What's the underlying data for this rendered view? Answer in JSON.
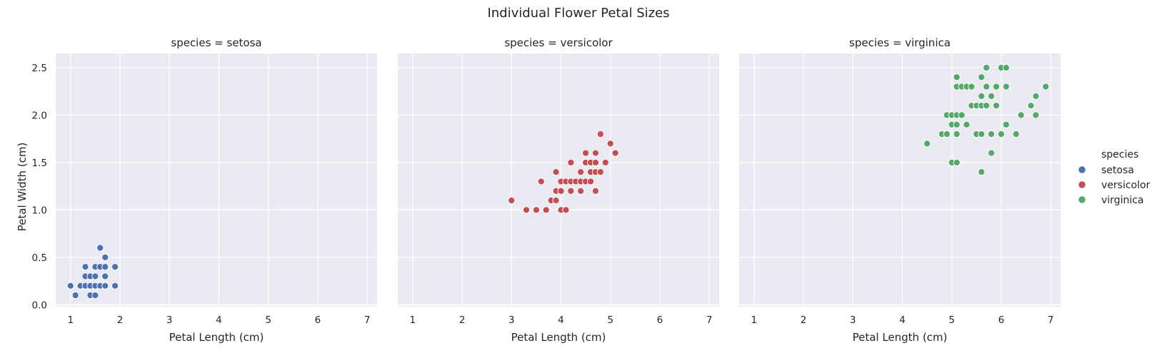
{
  "chart_data": {
    "type": "scatter",
    "title": "Individual Flower Petal Sizes",
    "xlabel": "Petal Length (cm)",
    "ylabel": "Petal Width (cm)",
    "xlim": [
      0.7,
      7.2
    ],
    "ylim": [
      -0.02,
      2.65
    ],
    "xticks": [
      "1",
      "2",
      "3",
      "4",
      "5",
      "6",
      "7"
    ],
    "yticks": [
      "0.0",
      "0.5",
      "1.0",
      "1.5",
      "2.0",
      "2.5"
    ],
    "grid": true,
    "legend": {
      "title": "species",
      "placement": "right",
      "entries": [
        "setosa",
        "versicolor",
        "virginica"
      ]
    },
    "facets": [
      {
        "title": "species = setosa",
        "name": "setosa",
        "color": "#4c72b0",
        "points": [
          [
            1.0,
            0.2
          ],
          [
            1.1,
            0.1
          ],
          [
            1.2,
            0.2
          ],
          [
            1.3,
            0.2
          ],
          [
            1.3,
            0.3
          ],
          [
            1.3,
            0.4
          ],
          [
            1.4,
            0.2
          ],
          [
            1.4,
            0.3
          ],
          [
            1.4,
            0.1
          ],
          [
            1.5,
            0.2
          ],
          [
            1.5,
            0.4
          ],
          [
            1.5,
            0.1
          ],
          [
            1.5,
            0.3
          ],
          [
            1.6,
            0.2
          ],
          [
            1.6,
            0.4
          ],
          [
            1.6,
            0.6
          ],
          [
            1.7,
            0.2
          ],
          [
            1.7,
            0.3
          ],
          [
            1.7,
            0.4
          ],
          [
            1.7,
            0.5
          ],
          [
            1.9,
            0.2
          ],
          [
            1.9,
            0.4
          ]
        ]
      },
      {
        "title": "species = versicolor",
        "name": "versicolor",
        "color": "#c44e52",
        "points": [
          [
            3.0,
            1.1
          ],
          [
            3.3,
            1.0
          ],
          [
            3.5,
            1.0
          ],
          [
            3.6,
            1.3
          ],
          [
            3.7,
            1.0
          ],
          [
            3.8,
            1.1
          ],
          [
            3.9,
            1.1
          ],
          [
            3.9,
            1.2
          ],
          [
            3.9,
            1.4
          ],
          [
            4.0,
            1.0
          ],
          [
            4.0,
            1.2
          ],
          [
            4.0,
            1.3
          ],
          [
            4.1,
            1.0
          ],
          [
            4.1,
            1.3
          ],
          [
            4.2,
            1.2
          ],
          [
            4.2,
            1.3
          ],
          [
            4.2,
            1.5
          ],
          [
            4.3,
            1.3
          ],
          [
            4.4,
            1.2
          ],
          [
            4.4,
            1.3
          ],
          [
            4.4,
            1.4
          ],
          [
            4.5,
            1.3
          ],
          [
            4.5,
            1.5
          ],
          [
            4.5,
            1.6
          ],
          [
            4.6,
            1.3
          ],
          [
            4.6,
            1.4
          ],
          [
            4.6,
            1.5
          ],
          [
            4.7,
            1.2
          ],
          [
            4.7,
            1.4
          ],
          [
            4.7,
            1.5
          ],
          [
            4.7,
            1.6
          ],
          [
            4.8,
            1.4
          ],
          [
            4.8,
            1.8
          ],
          [
            4.9,
            1.5
          ],
          [
            5.0,
            1.7
          ],
          [
            5.1,
            1.6
          ]
        ]
      },
      {
        "title": "species = virginica",
        "name": "virginica",
        "color": "#55a868",
        "points": [
          [
            4.5,
            1.7
          ],
          [
            4.8,
            1.8
          ],
          [
            4.9,
            1.8
          ],
          [
            4.9,
            2.0
          ],
          [
            5.0,
            1.5
          ],
          [
            5.0,
            1.9
          ],
          [
            5.0,
            2.0
          ],
          [
            5.1,
            1.5
          ],
          [
            5.1,
            1.8
          ],
          [
            5.1,
            1.9
          ],
          [
            5.1,
            2.0
          ],
          [
            5.1,
            2.3
          ],
          [
            5.1,
            2.4
          ],
          [
            5.2,
            2.0
          ],
          [
            5.2,
            2.3
          ],
          [
            5.3,
            1.9
          ],
          [
            5.3,
            2.3
          ],
          [
            5.4,
            2.1
          ],
          [
            5.4,
            2.3
          ],
          [
            5.5,
            1.8
          ],
          [
            5.5,
            2.1
          ],
          [
            5.6,
            1.4
          ],
          [
            5.6,
            1.8
          ],
          [
            5.6,
            2.1
          ],
          [
            5.6,
            2.2
          ],
          [
            5.6,
            2.4
          ],
          [
            5.7,
            2.1
          ],
          [
            5.7,
            2.3
          ],
          [
            5.7,
            2.5
          ],
          [
            5.8,
            1.6
          ],
          [
            5.8,
            1.8
          ],
          [
            5.8,
            2.2
          ],
          [
            5.9,
            2.1
          ],
          [
            5.9,
            2.3
          ],
          [
            6.0,
            1.8
          ],
          [
            6.0,
            2.5
          ],
          [
            6.1,
            1.9
          ],
          [
            6.1,
            2.3
          ],
          [
            6.1,
            2.5
          ],
          [
            6.3,
            1.8
          ],
          [
            6.4,
            2.0
          ],
          [
            6.6,
            2.1
          ],
          [
            6.7,
            2.0
          ],
          [
            6.7,
            2.2
          ],
          [
            6.9,
            2.3
          ]
        ]
      }
    ]
  }
}
